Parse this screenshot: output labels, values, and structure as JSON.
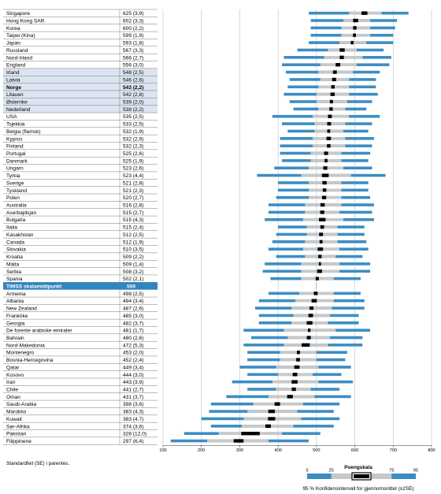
{
  "chart_data": {
    "type": "box-percentile",
    "xlim": [
      100,
      800
    ],
    "xticks": [
      100,
      200,
      300,
      400,
      500,
      600,
      700,
      800
    ],
    "xlabel": "Poengskala",
    "footnote": "Standardfeil (SE) i parentes.",
    "scale_midpoint_label": "TIMSS skalamidtpunkt",
    "scale_midpoint_value": "500",
    "legend": {
      "percentiles": [
        "5",
        "25",
        "75",
        "95"
      ],
      "caption": "95 % Konfidensintervall for gjennomsnittet (±2SE)"
    },
    "colors": {
      "outer": "#3c8dc4",
      "inner": "#c8c8c8",
      "ci": "#000000",
      "midpoint_row": "#2e86c1",
      "highlight": "#dbe4f0",
      "grid": "#c0c0c0"
    },
    "rows": [
      {
        "country": "Singapore",
        "score": "625 (3,9)",
        "mean": 625,
        "p5": 480,
        "p25": 585,
        "p75": 670,
        "p95": 740
      },
      {
        "country": "Hong Kong SAR",
        "score": "602 (3,3)",
        "mean": 602,
        "p5": 485,
        "p25": 570,
        "p75": 640,
        "p95": 710
      },
      {
        "country": "Korea",
        "score": "600 (2,2)",
        "mean": 600,
        "p5": 485,
        "p25": 565,
        "p75": 640,
        "p95": 705
      },
      {
        "country": "Taipei (Kina)",
        "score": "599 (1,9)",
        "mean": 599,
        "p5": 485,
        "p25": 565,
        "p75": 640,
        "p95": 700
      },
      {
        "country": "Japan",
        "score": "593 (1,8)",
        "mean": 593,
        "p5": 480,
        "p25": 560,
        "p75": 630,
        "p95": 700
      },
      {
        "country": "Russland",
        "score": "567 (3,3)",
        "mean": 567,
        "p5": 450,
        "p25": 530,
        "p75": 605,
        "p95": 675
      },
      {
        "country": "Nord-Irland",
        "score": "566 (2,7)",
        "mean": 566,
        "p5": 415,
        "p25": 520,
        "p75": 620,
        "p95": 695
      },
      {
        "country": "England",
        "score": "556 (3,0)",
        "mean": 556,
        "p5": 410,
        "p25": 510,
        "p75": 605,
        "p95": 690
      },
      {
        "country": "Irland",
        "score": "548 (2,5)",
        "mean": 548,
        "p5": 420,
        "p25": 505,
        "p75": 595,
        "p95": 665
      },
      {
        "country": "Latvia",
        "score": "546 (2,6)",
        "mean": 546,
        "p5": 430,
        "p25": 510,
        "p75": 585,
        "p95": 655
      },
      {
        "country": "Norge",
        "score": "543 (2,2)",
        "mean": 543,
        "p5": 425,
        "p25": 505,
        "p75": 585,
        "p95": 655
      },
      {
        "country": "Litauen",
        "score": "542 (2,8)",
        "mean": 542,
        "p5": 415,
        "p25": 500,
        "p75": 585,
        "p95": 660
      },
      {
        "country": "Østerrike",
        "score": "539 (2,0)",
        "mean": 539,
        "p5": 430,
        "p25": 500,
        "p75": 580,
        "p95": 645
      },
      {
        "country": "Nederland",
        "score": "538 (2,2)",
        "mean": 538,
        "p5": 440,
        "p25": 505,
        "p75": 575,
        "p95": 630
      },
      {
        "country": "USA",
        "score": "535 (2,5)",
        "mean": 535,
        "p5": 385,
        "p25": 490,
        "p75": 585,
        "p95": 665
      },
      {
        "country": "Tsjekkia",
        "score": "533 (2,5)",
        "mean": 533,
        "p5": 410,
        "p25": 495,
        "p75": 575,
        "p95": 645
      },
      {
        "country": "Belgia (flamsk)",
        "score": "532 (1,9)",
        "mean": 532,
        "p5": 425,
        "p25": 495,
        "p75": 570,
        "p95": 635
      },
      {
        "country": "Kypros",
        "score": "532 (2,9)",
        "mean": 532,
        "p5": 405,
        "p25": 490,
        "p75": 575,
        "p95": 650
      },
      {
        "country": "Finland",
        "score": "532 (2,3)",
        "mean": 532,
        "p5": 405,
        "p25": 490,
        "p75": 575,
        "p95": 645
      },
      {
        "country": "Portugal",
        "score": "525 (2,6)",
        "mean": 525,
        "p5": 405,
        "p25": 485,
        "p75": 565,
        "p95": 640
      },
      {
        "country": "Danmark",
        "score": "525 (1,9)",
        "mean": 525,
        "p5": 410,
        "p25": 485,
        "p75": 565,
        "p95": 635
      },
      {
        "country": "Ungarn",
        "score": "523 (2,6)",
        "mean": 523,
        "p5": 390,
        "p25": 480,
        "p75": 570,
        "p95": 645
      },
      {
        "country": "Tyrkia",
        "score": "523 (4,4)",
        "mean": 523,
        "p5": 345,
        "p25": 460,
        "p75": 590,
        "p95": 680
      },
      {
        "country": "Sverige",
        "score": "521 (2,8)",
        "mean": 521,
        "p5": 400,
        "p25": 480,
        "p75": 565,
        "p95": 635
      },
      {
        "country": "Tyskland",
        "score": "521 (2,3)",
        "mean": 521,
        "p5": 400,
        "p25": 480,
        "p75": 565,
        "p95": 635
      },
      {
        "country": "Polen",
        "score": "520 (2,7)",
        "mean": 520,
        "p5": 395,
        "p25": 480,
        "p75": 565,
        "p95": 640
      },
      {
        "country": "Australia",
        "score": "516 (2,8)",
        "mean": 516,
        "p5": 375,
        "p25": 470,
        "p75": 565,
        "p95": 650
      },
      {
        "country": "Aserbajdsjan",
        "score": "515 (2,7)",
        "mean": 515,
        "p5": 375,
        "p25": 470,
        "p75": 560,
        "p95": 645
      },
      {
        "country": "Bulgaria",
        "score": "515 (4,3)",
        "mean": 515,
        "p5": 365,
        "p25": 465,
        "p75": 570,
        "p95": 650
      },
      {
        "country": "Italia",
        "score": "515 (2,4)",
        "mean": 515,
        "p5": 400,
        "p25": 475,
        "p75": 555,
        "p95": 625
      },
      {
        "country": "Kasakhstan",
        "score": "512 (2,5)",
        "mean": 512,
        "p5": 395,
        "p25": 475,
        "p75": 555,
        "p95": 625
      },
      {
        "country": "Canada",
        "score": "512 (1,9)",
        "mean": 512,
        "p5": 385,
        "p25": 470,
        "p75": 555,
        "p95": 630
      },
      {
        "country": "Slovakia",
        "score": "510 (3,5)",
        "mean": 510,
        "p5": 375,
        "p25": 465,
        "p75": 560,
        "p95": 635
      },
      {
        "country": "Kroatia",
        "score": "509 (2,2)",
        "mean": 509,
        "p5": 395,
        "p25": 470,
        "p75": 550,
        "p95": 620
      },
      {
        "country": "Malta",
        "score": "509 (1,4)",
        "mean": 509,
        "p5": 365,
        "p25": 460,
        "p75": 560,
        "p95": 640
      },
      {
        "country": "Serbia",
        "score": "508 (3,2)",
        "mean": 508,
        "p5": 360,
        "p25": 460,
        "p75": 560,
        "p95": 640
      },
      {
        "country": "Spania",
        "score": "502 (2,1)",
        "mean": 502,
        "p5": 380,
        "p25": 460,
        "p75": 545,
        "p95": 615
      },
      {
        "country": "Armenia",
        "score": "498 (2,5)",
        "mean": 498,
        "p5": 375,
        "p25": 455,
        "p75": 545,
        "p95": 615
      },
      {
        "country": "Albania",
        "score": "494 (3,4)",
        "mean": 494,
        "p5": 350,
        "p25": 445,
        "p75": 545,
        "p95": 625
      },
      {
        "country": "New Zealand",
        "score": "487 (2,6)",
        "mean": 487,
        "p5": 340,
        "p25": 435,
        "p75": 540,
        "p95": 625
      },
      {
        "country": "Frankrike",
        "score": "485 (3,0)",
        "mean": 485,
        "p5": 350,
        "p25": 440,
        "p75": 535,
        "p95": 610
      },
      {
        "country": "Georgia",
        "score": "482 (3,7)",
        "mean": 482,
        "p5": 350,
        "p25": 435,
        "p75": 530,
        "p95": 610
      },
      {
        "country": "De forente arabiske emirater",
        "score": "481 (1,7)",
        "mean": 481,
        "p5": 310,
        "p25": 415,
        "p75": 550,
        "p95": 640
      },
      {
        "country": "Bahrain",
        "score": "480 (2,6)",
        "mean": 480,
        "p5": 330,
        "p25": 425,
        "p75": 535,
        "p95": 620
      },
      {
        "country": "Nord-Makedonia",
        "score": "472 (5,3)",
        "mean": 472,
        "p5": 310,
        "p25": 415,
        "p75": 530,
        "p95": 620
      },
      {
        "country": "Montenegro",
        "score": "453 (2,0)",
        "mean": 453,
        "p5": 320,
        "p25": 405,
        "p75": 500,
        "p95": 580
      },
      {
        "country": "Bosnia-Hercegovina",
        "score": "452 (2,4)",
        "mean": 452,
        "p5": 320,
        "p25": 405,
        "p75": 500,
        "p95": 575
      },
      {
        "country": "Qatar",
        "score": "449 (3,4)",
        "mean": 449,
        "p5": 300,
        "p25": 395,
        "p75": 505,
        "p95": 590
      },
      {
        "country": "Kosovo",
        "score": "444 (3,0)",
        "mean": 444,
        "p5": 320,
        "p25": 400,
        "p75": 490,
        "p95": 565
      },
      {
        "country": "Iran",
        "score": "443 (3,9)",
        "mean": 443,
        "p5": 280,
        "p25": 385,
        "p75": 505,
        "p95": 595
      },
      {
        "country": "Chile",
        "score": "441 (2,7)",
        "mean": 441,
        "p5": 320,
        "p25": 395,
        "p75": 485,
        "p95": 560
      },
      {
        "country": "Oman",
        "score": "431 (3,7)",
        "mean": 431,
        "p5": 265,
        "p25": 375,
        "p75": 495,
        "p95": 590
      },
      {
        "country": "Saudi-Arabia",
        "score": "398 (3,6)",
        "mean": 398,
        "p5": 225,
        "p25": 335,
        "p75": 465,
        "p95": 560
      },
      {
        "country": "Marokko",
        "score": "383 (4,3)",
        "mean": 383,
        "p5": 220,
        "p25": 320,
        "p75": 450,
        "p95": 545
      },
      {
        "country": "Kuwait",
        "score": "383 (4,7)",
        "mean": 383,
        "p5": 200,
        "p25": 310,
        "p75": 460,
        "p95": 560
      },
      {
        "country": "Sør-Afrika",
        "score": "374 (3,6)",
        "mean": 374,
        "p5": 225,
        "p25": 305,
        "p75": 440,
        "p95": 545
      },
      {
        "country": "Pakistan",
        "score": "328 (12,0)",
        "mean": 328,
        "p5": 155,
        "p25": 245,
        "p75": 410,
        "p95": 510
      },
      {
        "country": "Filippinene",
        "score": "297 (6,4)",
        "mean": 297,
        "p5": 120,
        "p25": 215,
        "p75": 375,
        "p95": 480
      }
    ]
  }
}
